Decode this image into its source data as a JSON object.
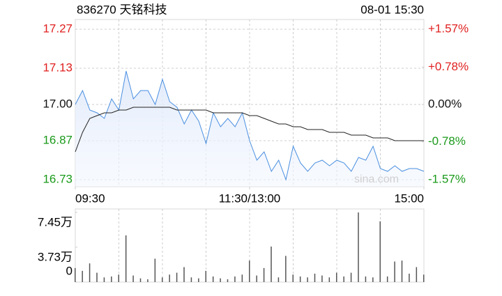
{
  "chart_data": [
    {
      "type": "line",
      "title": "836270 天铭科技",
      "timestamp": "08-01 15:30",
      "watermark": "sina.com",
      "x": [
        0,
        5,
        10,
        15,
        20,
        25,
        30,
        35,
        40,
        45,
        50,
        55,
        60,
        65,
        70,
        75,
        80,
        85,
        90,
        95,
        100,
        105,
        110,
        115,
        120,
        125,
        130,
        135,
        140,
        145,
        150,
        155,
        160,
        165,
        170,
        175,
        180,
        185,
        190,
        195,
        200,
        205,
        210,
        215,
        220,
        225,
        230,
        235,
        240
      ],
      "xlim": [
        0,
        240
      ],
      "xticks": [
        {
          "value": 0,
          "label": "09:30"
        },
        {
          "value": 120,
          "label": "11:30/13:00"
        },
        {
          "value": 240,
          "label": "15:00"
        }
      ],
      "series": [
        {
          "color": "#4a8fe0",
          "values": [
            17.0,
            17.05,
            16.98,
            16.97,
            16.95,
            17.02,
            16.98,
            17.12,
            17.02,
            17.05,
            17.05,
            17.0,
            17.09,
            17.01,
            16.99,
            16.93,
            16.98,
            16.94,
            16.86,
            16.97,
            16.92,
            16.95,
            16.92,
            16.97,
            16.87,
            16.8,
            16.83,
            16.76,
            16.8,
            16.73,
            16.85,
            16.79,
            16.76,
            16.79,
            16.8,
            16.78,
            16.8,
            16.79,
            16.76,
            16.81,
            16.8,
            16.85,
            16.77,
            16.76,
            16.78,
            16.76,
            16.77,
            16.77,
            16.76
          ]
        },
        {
          "color": "#222222",
          "values": [
            16.83,
            16.9,
            16.95,
            16.96,
            16.97,
            16.97,
            16.98,
            16.98,
            16.99,
            16.99,
            16.99,
            16.99,
            16.99,
            16.99,
            16.98,
            16.98,
            16.98,
            16.98,
            16.98,
            16.97,
            16.97,
            16.97,
            16.97,
            16.97,
            16.96,
            16.96,
            16.95,
            16.94,
            16.93,
            16.93,
            16.92,
            16.92,
            16.91,
            16.91,
            16.91,
            16.9,
            16.9,
            16.9,
            16.89,
            16.89,
            16.89,
            16.88,
            16.88,
            16.88,
            16.87,
            16.87,
            16.87,
            16.87,
            16.87
          ]
        }
      ],
      "ylim": [
        16.73,
        17.27
      ],
      "yticks": [
        17.27,
        17.13,
        {
          "value": 17,
          "label": "17.00"
        },
        16.87,
        16.73
      ],
      "y2lim": [
        -1.57,
        1.57
      ],
      "y2ticks": [
        {
          "value": 1.57,
          "label": "+1.57%"
        },
        {
          "value": 0.78,
          "label": "+0.78%"
        },
        {
          "value": 0,
          "label": "0.00%"
        },
        {
          "value": -0.78,
          "label": "-0.78%"
        },
        {
          "value": -1.57,
          "label": "-1.57%"
        }
      ],
      "up_color": "#e0201f",
      "down_color": "#1a9a1a",
      "flat_color": "#111111",
      "grid": true
    },
    {
      "type": "bar",
      "color": "#555555",
      "x": [
        0,
        5,
        10,
        15,
        20,
        25,
        30,
        35,
        40,
        45,
        50,
        55,
        60,
        65,
        70,
        75,
        80,
        85,
        90,
        95,
        100,
        105,
        110,
        115,
        120,
        125,
        130,
        135,
        140,
        145,
        150,
        155,
        160,
        165,
        170,
        175,
        180,
        185,
        190,
        195,
        200,
        205,
        210,
        215,
        220,
        225,
        230,
        235,
        240
      ],
      "xlim": [
        0,
        240
      ],
      "values": [
        1.5,
        1.2,
        2.0,
        1.0,
        0.5,
        0.6,
        0.8,
        5.0,
        0.7,
        0.4,
        0.3,
        2.5,
        0.5,
        0.8,
        1.0,
        1.6,
        0.5,
        0.4,
        1.2,
        0.6,
        0.4,
        0.3,
        0.6,
        0.8,
        2.3,
        0.7,
        1.5,
        3.8,
        0.5,
        2.8,
        0.8,
        0.6,
        0.5,
        0.9,
        0.7,
        0.5,
        1.0,
        0.6,
        1.0,
        7.45,
        0.6,
        0.5,
        6.5,
        0.6,
        2.2,
        2.3,
        0.9,
        1.6,
        0.8
      ],
      "ylim": [
        0,
        7.45
      ],
      "yticks": [
        {
          "value": 7.45,
          "label": "7.45万"
        },
        {
          "value": 3.73,
          "label": "3.73万"
        },
        0
      ]
    }
  ]
}
